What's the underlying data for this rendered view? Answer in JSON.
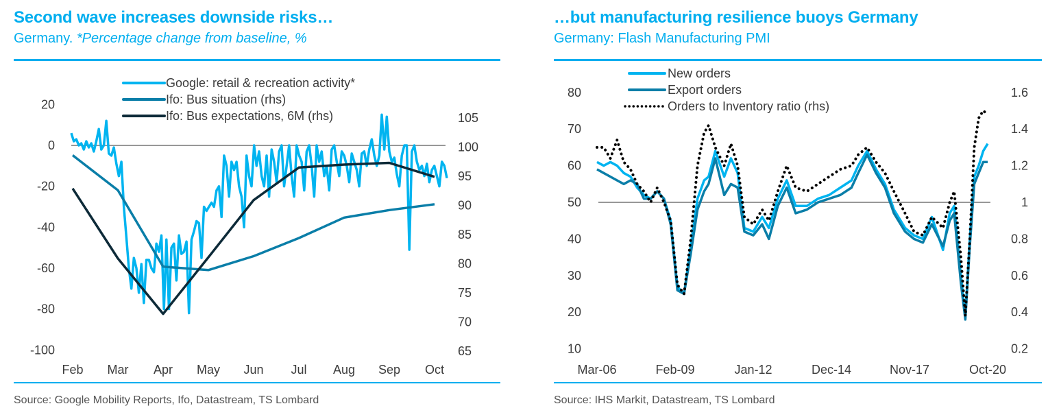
{
  "left": {
    "title": "Second wave increases downside risks…",
    "subtitle_plain": "Germany.",
    "subtitle_italic": "*Percentage change from baseline, %",
    "source": "Source: Google Mobility Reports, Ifo, Datastream, TS Lombard"
  },
  "right": {
    "title": "…but manufacturing resilience buoys Germany",
    "subtitle_plain": "Germany: Flash Manufacturing PMI",
    "source": "Source: IHS Markit, Datastream, TS Lombard"
  },
  "colors": {
    "accent": "#00aeef",
    "light_blue": "#00b4f0",
    "mid_blue": "#0a7ea8",
    "navy": "#0d2a38",
    "dotted": "#000000",
    "zero_line": "#777777"
  },
  "chart_data": [
    {
      "type": "line",
      "title": "Second wave increases downside risks…",
      "subtitle": "Germany. *Percentage change from baseline, %",
      "x_ticks": [
        "Feb",
        "Mar",
        "Apr",
        "May",
        "Jun",
        "Jul",
        "Aug",
        "Sep",
        "Oct"
      ],
      "x_range_months": [
        0,
        8.6
      ],
      "y_left": {
        "ticks": [
          20,
          0,
          -20,
          -40,
          -60,
          -80,
          -100
        ],
        "range": [
          -100,
          20
        ]
      },
      "y_right": {
        "ticks": [
          105,
          100,
          95,
          90,
          85,
          80,
          75,
          70,
          65
        ],
        "range": [
          65,
          105
        ]
      },
      "reference_line_left": 0,
      "legend": "top-center",
      "series": [
        {
          "name": "Google: retail & recreation activity*",
          "axis": "left",
          "color_key": "light_blue",
          "x_unit": "months since mid-Feb (every ~3 days)",
          "values": [
            6,
            2,
            3,
            0,
            1,
            -2,
            2,
            -1,
            1,
            -3,
            2,
            8,
            -2,
            0,
            12,
            -4,
            -5,
            -1,
            -9,
            -15,
            -8,
            -30,
            -45,
            -60,
            -70,
            -55,
            -60,
            -72,
            -58,
            -77,
            -56,
            -56,
            -60,
            -62,
            -48,
            -52,
            -44,
            -80,
            -46,
            -80,
            -50,
            -48,
            -66,
            -44,
            -53,
            -52,
            -47,
            -82,
            -46,
            -42,
            -37,
            -38,
            -55,
            -30,
            -32,
            -30,
            -28,
            -30,
            -22,
            -20,
            -35,
            -5,
            -10,
            -25,
            -8,
            -12,
            -8,
            -20,
            -25,
            -40,
            -5,
            -15,
            -20,
            0,
            -10,
            -3,
            -15,
            -20,
            -5,
            -25,
            -2,
            -8,
            -18,
            -3,
            0,
            -20,
            -10,
            0,
            -15,
            -25,
            0,
            -5,
            -8,
            -22,
            -3,
            0,
            -10,
            -25,
            0,
            -8,
            -3,
            -15,
            -10,
            -22,
            -2,
            0,
            -8,
            -15,
            -3,
            -5,
            -10,
            -18,
            -4,
            -8,
            -12,
            -20,
            -4,
            -3,
            -10,
            -2,
            3,
            -5,
            -10,
            -5,
            15,
            -2,
            14,
            -3,
            -8,
            -6,
            -14,
            -20,
            -5,
            0,
            0,
            -51,
            -3,
            0,
            -8,
            -12,
            -10,
            -15,
            -9,
            -18,
            -12,
            -10,
            -15,
            -20,
            -8,
            -10,
            -16
          ]
        },
        {
          "name": "Ifo: Bus situation (rhs)",
          "axis": "right",
          "color_key": "mid_blue",
          "x": [
            "Feb",
            "Mar",
            "Apr",
            "May",
            "Jun",
            "Jul",
            "Aug",
            "Sep",
            "Oct"
          ],
          "values": [
            98.6,
            92.6,
            79.5,
            78.9,
            81.3,
            84.4,
            87.9,
            89.2,
            90.2
          ]
        },
        {
          "name": "Ifo: Bus expectations, 6M (rhs)",
          "axis": "right",
          "color_key": "navy",
          "x": [
            "Feb",
            "Mar",
            "Apr",
            "May",
            "Jun",
            "Jul",
            "Aug",
            "Sep",
            "Oct"
          ],
          "values": [
            92.9,
            80.9,
            71.4,
            81.1,
            90.9,
            96.5,
            97.0,
            97.3,
            94.9
          ]
        }
      ]
    },
    {
      "type": "line",
      "title": "…but manufacturing resilience buoys Germany",
      "subtitle": "Germany: Flash Manufacturing PMI",
      "x_ticks": [
        "Mar-06",
        "Feb-09",
        "Jan-12",
        "Dec-14",
        "Nov-17",
        "Oct-20"
      ],
      "x_range_months": [
        0,
        175
      ],
      "y_left": {
        "ticks": [
          80,
          70,
          60,
          50,
          40,
          30,
          20,
          10
        ],
        "range": [
          10,
          80
        ]
      },
      "y_right": {
        "ticks": [
          1.6,
          1.4,
          1.2,
          1,
          0.8,
          0.6,
          0.4,
          0.2
        ],
        "range": [
          0.2,
          1.6
        ]
      },
      "reference_line_left": 50,
      "legend": "top-center",
      "series": [
        {
          "name": "New orders",
          "axis": "left",
          "color_key": "light_blue",
          "t": [
            0,
            3,
            6,
            9,
            12,
            15,
            18,
            21,
            24,
            27,
            30,
            33,
            36,
            39,
            42,
            45,
            48,
            50,
            53,
            57,
            60,
            63,
            66,
            70,
            74,
            77,
            81,
            85,
            89,
            94,
            99,
            104,
            109,
            114,
            117,
            121,
            125,
            129,
            133,
            138,
            142,
            146,
            150,
            155,
            158,
            160,
            163,
            165,
            167,
            169,
            171,
            173,
            175
          ],
          "values": [
            61,
            60,
            61,
            60,
            58,
            57,
            54,
            52,
            51,
            53,
            51,
            45,
            27,
            25,
            38,
            51,
            56,
            57,
            64,
            57,
            62,
            58,
            43,
            42,
            46,
            43,
            51,
            56,
            49,
            49,
            51,
            52,
            54,
            56,
            60,
            64,
            59,
            55,
            48,
            43,
            41,
            40,
            46,
            37,
            47,
            49,
            30,
            19,
            40,
            57,
            60,
            64,
            66
          ]
        },
        {
          "name": "Export orders",
          "axis": "left",
          "color_key": "mid_blue",
          "t": [
            0,
            3,
            6,
            9,
            12,
            15,
            18,
            21,
            24,
            27,
            30,
            33,
            36,
            39,
            42,
            45,
            48,
            50,
            53,
            57,
            60,
            63,
            66,
            70,
            74,
            77,
            81,
            85,
            89,
            94,
            99,
            104,
            109,
            114,
            117,
            121,
            125,
            129,
            133,
            138,
            142,
            146,
            150,
            155,
            158,
            160,
            163,
            165,
            167,
            169,
            171,
            173,
            175
          ],
          "values": [
            59,
            58,
            57,
            56,
            55,
            56,
            55,
            51,
            51,
            53,
            51,
            44,
            26,
            25,
            36,
            48,
            53,
            55,
            62,
            52,
            55,
            54,
            42,
            41,
            44,
            40,
            49,
            54,
            47,
            48,
            50,
            51,
            52,
            54,
            58,
            63,
            58,
            54,
            47,
            42,
            40,
            39,
            44,
            38,
            45,
            47,
            28,
            18,
            38,
            55,
            58,
            61,
            61
          ]
        },
        {
          "name": "Orders to Inventory ratio (rhs)",
          "axis": "right",
          "color_key": "dotted",
          "t": [
            0,
            3,
            6,
            9,
            12,
            15,
            18,
            21,
            24,
            27,
            30,
            33,
            36,
            39,
            42,
            45,
            48,
            50,
            53,
            57,
            60,
            63,
            66,
            70,
            74,
            77,
            81,
            85,
            89,
            94,
            99,
            104,
            109,
            114,
            117,
            121,
            125,
            129,
            133,
            138,
            142,
            146,
            150,
            155,
            158,
            160,
            163,
            165,
            167,
            169,
            171,
            173,
            175
          ],
          "values": [
            1.3,
            1.3,
            1.24,
            1.34,
            1.22,
            1.18,
            1.1,
            1.06,
            1.0,
            1.08,
            1.0,
            0.9,
            0.55,
            0.5,
            0.8,
            1.2,
            1.38,
            1.42,
            1.3,
            1.2,
            1.32,
            1.2,
            0.92,
            0.88,
            0.96,
            0.9,
            1.06,
            1.2,
            1.08,
            1.06,
            1.1,
            1.14,
            1.18,
            1.2,
            1.26,
            1.3,
            1.22,
            1.16,
            1.06,
            0.94,
            0.84,
            0.82,
            0.92,
            0.86,
            1.0,
            1.06,
            0.7,
            0.38,
            0.8,
            1.3,
            1.46,
            1.5,
            1.48
          ]
        }
      ]
    }
  ]
}
